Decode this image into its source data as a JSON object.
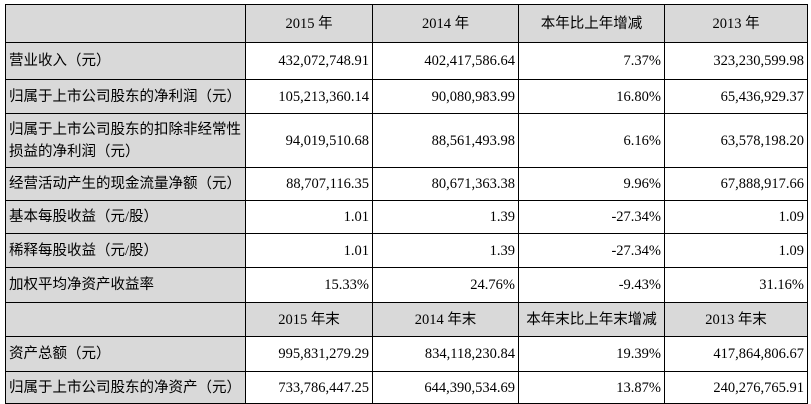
{
  "colors": {
    "shade": "#d9d9d9",
    "border": "#000000"
  },
  "header1": [
    "",
    "2015 年",
    "2014 年",
    "本年比上年增减",
    "2013 年"
  ],
  "rows1": [
    {
      "label": "营业收入（元）",
      "values": [
        "432,072,748.91",
        "402,417,586.64",
        "7.37%",
        "323,230,599.98"
      ]
    },
    {
      "label": "归属于上市公司股东的净利润（元）",
      "values": [
        "105,213,360.14",
        "90,080,983.99",
        "16.80%",
        "65,436,929.37"
      ]
    },
    {
      "label": "归属于上市公司股东的扣除非经常性损益的净利润（元）",
      "values": [
        "94,019,510.68",
        "88,561,493.98",
        "6.16%",
        "63,578,198.20"
      ]
    },
    {
      "label": "经营活动产生的现金流量净额（元）",
      "values": [
        "88,707,116.35",
        "80,671,363.38",
        "9.96%",
        "67,888,917.66"
      ]
    },
    {
      "label": "基本每股收益（元/股）",
      "values": [
        "1.01",
        "1.39",
        "-27.34%",
        "1.09"
      ]
    },
    {
      "label": "稀释每股收益（元/股）",
      "values": [
        "1.01",
        "1.39",
        "-27.34%",
        "1.09"
      ]
    },
    {
      "label": "加权平均净资产收益率",
      "values": [
        "15.33%",
        "24.76%",
        "-9.43%",
        "31.16%"
      ]
    }
  ],
  "header2": [
    "",
    "2015 年末",
    "2014 年末",
    "本年末比上年末增减",
    "2013 年末"
  ],
  "rows2": [
    {
      "label": "资产总额（元）",
      "values": [
        "995,831,279.29",
        "834,118,230.84",
        "19.39%",
        "417,864,806.67"
      ]
    },
    {
      "label": "归属于上市公司股东的净资产（元）",
      "values": [
        "733,786,447.25",
        "644,390,534.69",
        "13.87%",
        "240,276,765.91"
      ]
    }
  ]
}
